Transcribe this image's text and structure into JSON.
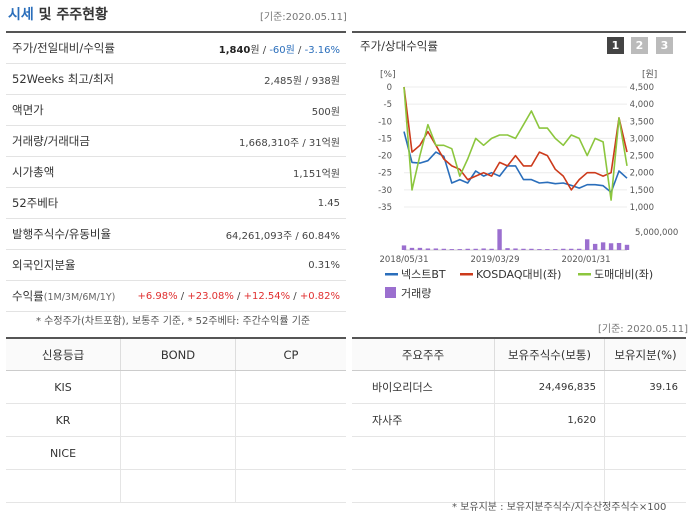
{
  "header": {
    "title": "시세",
    "title_suffix": "및 주주현황",
    "basis": "[기준:2020.05.11]"
  },
  "quote_rows": [
    {
      "label": "주가/전일대비/수익률",
      "price": "1,840",
      "price_unit": "원",
      "sep1": " / ",
      "change": "-60원",
      "sep2": " / ",
      "rate": "-3.16%"
    },
    {
      "label": "52Weeks 최고/최저",
      "value": "2,485원 / 938원"
    },
    {
      "label": "액면가",
      "value": "500원"
    },
    {
      "label": "거래량/거래대금",
      "value": "1,668,310주 / 31억원"
    },
    {
      "label": "시가총액",
      "value": "1,151억원"
    },
    {
      "label": "52주베타",
      "value": "1.45"
    },
    {
      "label": "발행주식수/유동비율",
      "value": "64,261,093주 / 60.84%"
    },
    {
      "label": "외국인지분율",
      "value": "0.31%"
    },
    {
      "label": "수익률",
      "label_sub": "(1M/3M/6M/1Y)",
      "r1": "+6.98%",
      "r2": "+23.08%",
      "r3": "+12.54%",
      "r4": "+0.82%",
      "sep": " / "
    }
  ],
  "quote_note": "* 수정주가(차트포함), 보통주 기준, * 52주베타: 주간수익률 기준",
  "chart": {
    "title": "주가/상대수익률",
    "period_buttons": [
      "1",
      "2",
      "3"
    ],
    "left_unit": "[%]",
    "right_unit": "[원]",
    "vol_tick": "5,000,000",
    "legend": [
      {
        "name": "넥스트BT",
        "color": "#2a6ebb"
      },
      {
        "name": "KOSDAQ대비(좌)",
        "color": "#cc3a1b"
      },
      {
        "name": "도매대비(좌)",
        "color": "#8cc63e"
      },
      {
        "name": "거래량",
        "color": "#9b6fcf"
      }
    ]
  },
  "chart_data": {
    "type": "line",
    "x_tick_labels": [
      "2018/05/31",
      "2019/03/29",
      "2020/01/31"
    ],
    "left_ylim": [
      -35,
      0
    ],
    "left_ticks": [
      "0",
      "-5",
      "-10",
      "-15",
      "-20",
      "-25",
      "-30",
      "-35"
    ],
    "right_ylim": [
      1000,
      4500
    ],
    "right_ticks": [
      "4,500",
      "4,000",
      "3,500",
      "3,000",
      "2,500",
      "2,000",
      "1,500",
      "1,000"
    ],
    "series": [
      {
        "name": "넥스트BT",
        "axis": "right",
        "values": [
          3200,
          2300,
          2280,
          2350,
          2600,
          2480,
          1700,
          1800,
          1700,
          2050,
          1900,
          2000,
          1900,
          2200,
          2200,
          1800,
          1800,
          1700,
          1720,
          1680,
          1700,
          1630,
          1550,
          1650,
          1650,
          1620,
          1430,
          2050,
          1840
        ]
      },
      {
        "name": "KOSDAQ대비(좌)",
        "axis": "left",
        "values": [
          0,
          -19,
          -17,
          -13,
          -17,
          -21,
          -23,
          -24,
          -27,
          -26,
          -25,
          -26,
          -22,
          -23,
          -20,
          -23,
          -23,
          -19,
          -20,
          -24,
          -26,
          -30,
          -27,
          -25,
          -25,
          -26,
          -25,
          -9,
          -19
        ]
      },
      {
        "name": "도매대비(좌)",
        "axis": "left",
        "values": [
          0,
          -30,
          -20,
          -11,
          -17,
          -17,
          -18,
          -26,
          -21,
          -15,
          -17,
          -15,
          -14,
          -14,
          -15,
          -11,
          -7,
          -12,
          -12,
          -15,
          -17,
          -14,
          -15,
          -20,
          -15,
          -16,
          -33,
          -9,
          -23
        ]
      },
      {
        "name": "거래량",
        "axis": "volume",
        "values": [
          1.5,
          0.7,
          0.7,
          0.5,
          0.5,
          0.4,
          0.3,
          0.3,
          0.4,
          0.4,
          0.5,
          0.4,
          6.8,
          0.6,
          0.5,
          0.4,
          0.4,
          0.3,
          0.3,
          0.3,
          0.4,
          0.4,
          0.4,
          3.5,
          2.0,
          2.5,
          2.2,
          2.3,
          1.7
        ]
      }
    ]
  },
  "credit": {
    "headers": [
      "신용등급",
      "BOND",
      "CP"
    ],
    "rows": [
      [
        "KIS",
        "",
        ""
      ],
      [
        "KR",
        "",
        ""
      ],
      [
        "NICE",
        "",
        ""
      ],
      [
        "",
        "",
        ""
      ]
    ]
  },
  "shareholders": {
    "basis": "[기준: 2020.05.11]",
    "headers": [
      "주요주주",
      "보유주식수(보통)",
      "보유지분(%)"
    ],
    "rows": [
      [
        "바이오리더스",
        "24,496,835",
        "39.16"
      ],
      [
        "자사주",
        "1,620",
        ""
      ],
      [
        "",
        "",
        ""
      ],
      [
        "",
        "",
        ""
      ]
    ]
  },
  "share_note": "* 보유지분 : 보유지분주식수/지수산정주식수×100"
}
